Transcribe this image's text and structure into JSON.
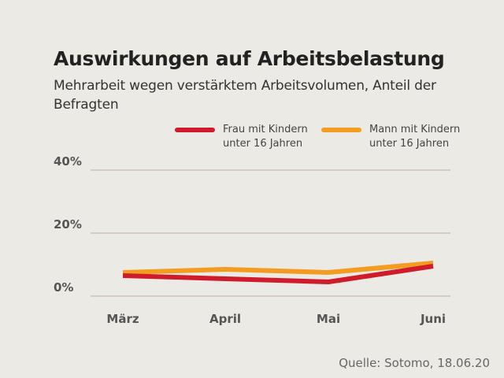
{
  "title": "Auswirkungen auf Arbeitsbelastung",
  "subtitle": "Mehrarbeit wegen verstärktem Arbeitsvolumen, Anteil der Befragten",
  "source": "Quelle: Sotomo, 18.06.20",
  "colors": {
    "background": "#ebeae4",
    "grid": "#c9b9ad",
    "frau": "#d01c2a",
    "mann": "#f39c1f"
  },
  "legend": [
    {
      "label": "Frau mit Kindern unter 16 Jahren",
      "color": "#d01c2a"
    },
    {
      "label": "Mann mit Kindern unter 16 Jahren",
      "color": "#f39c1f"
    }
  ],
  "chart_data": {
    "type": "line",
    "title": "Auswirkungen auf Arbeitsbelastung",
    "subtitle": "Mehrarbeit wegen verstärktem Arbeitsvolumen, Anteil der Befragten",
    "categories": [
      "März",
      "April",
      "Mai",
      "Juni"
    ],
    "series": [
      {
        "name": "Frau mit Kindern unter 16 Jahren",
        "color": "#d01c2a",
        "values": [
          6.5,
          5.5,
          4.5,
          9.5
        ]
      },
      {
        "name": "Mann mit Kindern unter 16 Jahren",
        "color": "#f39c1f",
        "values": [
          7.5,
          8.5,
          7.5,
          10.5
        ]
      }
    ],
    "yticks": [
      0,
      20,
      40
    ],
    "ytick_labels": [
      "0%",
      "20%",
      "40%"
    ],
    "ylim": [
      0,
      40
    ],
    "xlabel": "",
    "ylabel": "",
    "grid": true,
    "legend_position": "top-right"
  }
}
